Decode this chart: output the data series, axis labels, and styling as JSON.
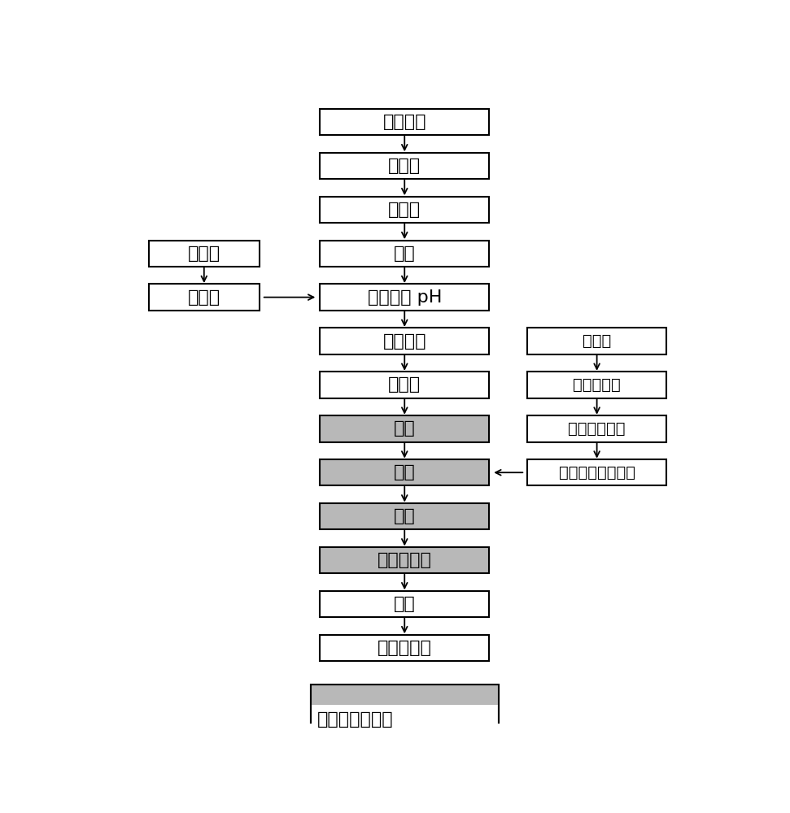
{
  "bg_color": "#ffffff",
  "box_color_white": "#ffffff",
  "box_color_gray": "#b8b8b8",
  "box_border": "#000000",
  "text_color": "#000000",
  "main_boxes": [
    {
      "label": "羟甲烟胺",
      "shaded": false,
      "row": 0
    },
    {
      "label": "检　测",
      "shaded": false,
      "row": 1
    },
    {
      "label": "投　料",
      "shaded": false,
      "row": 2
    },
    {
      "label": "溶解",
      "shaded": false,
      "row": 3
    },
    {
      "label": "溶解，调 pH",
      "shaded": false,
      "row": 4
    },
    {
      "label": "加炭粗滤",
      "shaded": false,
      "row": 5
    },
    {
      "label": "半成品",
      "shaded": false,
      "row": 6
    },
    {
      "label": "精滤",
      "shaded": true,
      "row": 7
    },
    {
      "label": "罐装",
      "shaded": true,
      "row": 8
    },
    {
      "label": "冻干",
      "shaded": true,
      "row": 9
    },
    {
      "label": "压塞，札盖",
      "shaded": true,
      "row": 10
    },
    {
      "label": "灯检",
      "shaded": false,
      "row": 11
    },
    {
      "label": "包装，成品",
      "shaded": false,
      "row": 12
    }
  ],
  "left_boxes": [
    {
      "label": "辅　料",
      "shaded": false,
      "row": 3
    },
    {
      "label": "检　测",
      "shaded": false,
      "row": 4
    }
  ],
  "right_boxes": [
    {
      "label": "西林瓶",
      "shaded": false,
      "row": 5
    },
    {
      "label": "纯化水清洗",
      "shaded": false,
      "row": 6
    },
    {
      "label": "注射用水清洗",
      "shaded": false,
      "row": 7
    },
    {
      "label": "烘干、灯菌、冷却",
      "shaded": false,
      "row": 8
    }
  ],
  "bottom_label": "此为百级净化区",
  "font_size": 16,
  "small_font_size": 14
}
